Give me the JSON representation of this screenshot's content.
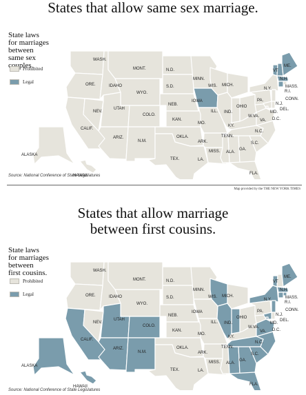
{
  "colors": {
    "prohibited": "#e6e4dc",
    "legal": "#7a9cac",
    "background": "#ffffff"
  },
  "map1": {
    "headline": "States that allow same sex marriage.",
    "legend_title_lines": [
      "State laws",
      "for marriages",
      "between",
      "same sex",
      "couples."
    ],
    "legend_prohibited": "Prohibited",
    "legend_legal": "Legal",
    "source": "Source: National Conference of State Legislatures",
    "credit": "Map provided by the THE NEW YORK TIMES",
    "legal_states": [
      "IOWA",
      "VT",
      "N.H.",
      "MASS.",
      "CONN.",
      "ME."
    ]
  },
  "map2": {
    "headline_line1": "States that allow marriage",
    "headline_line2": "between first cousins.",
    "legend_title_lines": [
      "State laws",
      "for marriages",
      "between",
      "first cousins."
    ],
    "legend_prohibited": "Prohibited",
    "legend_legal": "Legal",
    "source": "Source: National Conference of State Legislatures",
    "legal_states": [
      "CALIF.",
      "UTAH",
      "COLO.",
      "ARIZ.",
      "N.M.",
      "ALASKA",
      "HAWAII",
      "WIS.",
      "ILL.",
      "IND.",
      "TENN.",
      "N.C.",
      "S.C.",
      "GA.",
      "ALA.",
      "FLA.",
      "VA.",
      "MD.",
      "D.C.",
      "N.J.",
      "N.Y.",
      "VT",
      "MASS.",
      "CONN.",
      "R.I.",
      "ME."
    ]
  },
  "state_labels": {
    "WASH.": "WASH.",
    "ORE.": "ORE.",
    "CALIF.": "CALIF.",
    "NEV.": "NEV.",
    "IDAHO": "IDAHO",
    "MONT.": "MONT.",
    "WYO.": "WYO.",
    "UTAH": "UTAH",
    "ARIZ.": "ARIZ.",
    "COLO.": "COLO.",
    "N.M.": "N.M.",
    "N.D.": "N.D.",
    "S.D.": "S.D.",
    "NEB.": "NEB.",
    "KAN.": "KAN.",
    "OKLA.": "OKLA.",
    "TEX.": "TEX.",
    "MINN.": "MINN.",
    "IOWA": "IOWA",
    "MO.": "MO.",
    "ARK.": "ARK.",
    "LA.": "LA.",
    "WIS.": "WIS.",
    "ILL.": "ILL.",
    "MICH.": "MICH.",
    "IND.": "IND.",
    "OHIO": "OHIO",
    "KY.": "KY.",
    "TENN.": "TENN.",
    "MISS.": "MISS.",
    "ALA.": "ALA.",
    "GA.": "GA.",
    "FLA.": "FLA.",
    "S.C.": "S.C.",
    "N.C.": "N.C.",
    "VA.": "VA.",
    "W.VA.": "W.VA.",
    "PA.": "PA.",
    "N.Y.": "N.Y.",
    "VT": "VT",
    "N.H.": "N.H.",
    "ME.": "ME.",
    "MASS.": "MASS.",
    "R.I.": "R.I.",
    "CONN.": "CONN.",
    "N.J.": "N.J.",
    "DEL.": "DEL.",
    "MD.": "MD.",
    "D.C.": "D.C.",
    "ALASKA": "ALASKA",
    "HAWAII": "HAWAII"
  }
}
